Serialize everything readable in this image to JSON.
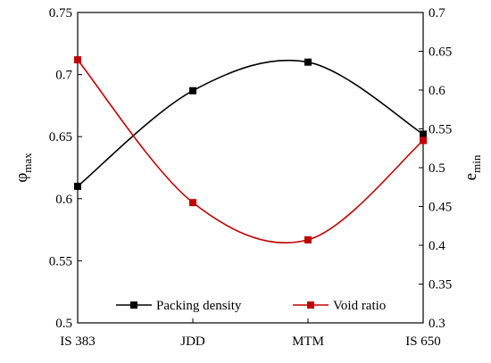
{
  "chart_data": {
    "type": "line",
    "categories": [
      "IS 383",
      "JDD",
      "MTM",
      "IS 650"
    ],
    "series": [
      {
        "name": "Packing density",
        "axis": "left",
        "color": "#000000",
        "values": [
          0.61,
          0.687,
          0.71,
          0.652
        ]
      },
      {
        "name": "Void ratio",
        "axis": "right",
        "color": "#c00000",
        "values": [
          0.639,
          0.455,
          0.407,
          0.535
        ]
      }
    ],
    "ylabel_left": {
      "main": "φ",
      "sub": "max"
    },
    "ylabel_right": {
      "main": "e",
      "sub": "min"
    },
    "ylim_left": [
      0.5,
      0.75
    ],
    "yticks_left": [
      "0.5",
      "0.55",
      "0.6",
      "0.65",
      "0.7",
      "0.75"
    ],
    "ylim_right": [
      0.3,
      0.7
    ],
    "yticks_right": [
      "0.3",
      "0.35",
      "0.4",
      "0.45",
      "0.5",
      "0.55",
      "0.6",
      "0.65",
      "0.7"
    ],
    "grid": false,
    "legend_position": "bottom-center",
    "smooth": true,
    "marker": "square"
  }
}
